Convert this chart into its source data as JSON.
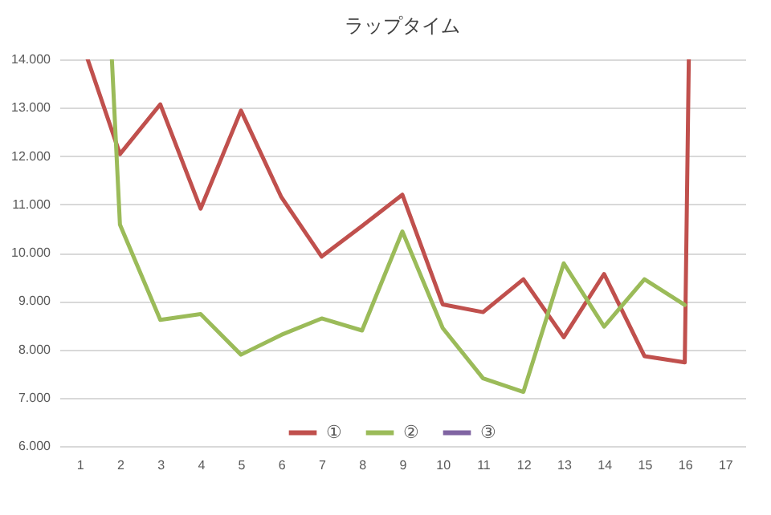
{
  "chart_data": {
    "type": "line",
    "title": "ラップタイム",
    "xlim": [
      0.5,
      17.5
    ],
    "xticks": [
      1,
      2,
      3,
      4,
      5,
      6,
      7,
      8,
      9,
      10,
      11,
      12,
      13,
      14,
      15,
      16,
      17
    ],
    "ylim": [
      6,
      14
    ],
    "yticks": [
      {
        "value": 6,
        "label": "6.000"
      },
      {
        "value": 7,
        "label": "7.000"
      },
      {
        "value": 8,
        "label": "8.000"
      },
      {
        "value": 9,
        "label": "9.000"
      },
      {
        "value": 10,
        "label": "10.000"
      },
      {
        "value": 11,
        "label": "11.000"
      },
      {
        "value": 12,
        "label": "12.000"
      },
      {
        "value": 13,
        "label": "13.000"
      },
      {
        "value": 14,
        "label": "14.000"
      }
    ],
    "grid": "y",
    "legend": "bottom",
    "marker": "none",
    "line_style": "solid",
    "series": [
      {
        "name": "①",
        "color": "#c0504d",
        "x": [
          1.2,
          2,
          3,
          4,
          5,
          6,
          7,
          8,
          9,
          10,
          11,
          12,
          13,
          14,
          15,
          16,
          16.1
        ],
        "values": [
          14,
          12.04,
          13.07,
          10.91,
          12.94,
          11.15,
          9.92,
          10.55,
          11.2,
          8.93,
          8.77,
          9.45,
          8.25,
          9.56,
          7.86,
          7.73,
          14
        ]
      },
      {
        "name": "②",
        "color": "#9bbb59",
        "x": [
          1.8,
          2,
          3,
          4,
          5,
          6,
          7,
          8,
          9,
          10,
          11,
          12,
          13,
          14,
          15,
          16
        ],
        "values": [
          14,
          10.58,
          8.61,
          8.73,
          7.89,
          8.3,
          8.64,
          8.39,
          10.44,
          8.44,
          7.4,
          7.12,
          9.78,
          8.47,
          9.45,
          8.92
        ]
      },
      {
        "name": "③",
        "color": "#8064a2"
      }
    ]
  }
}
